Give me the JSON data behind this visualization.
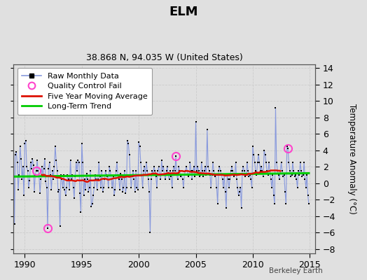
{
  "title": "ELM",
  "subtitle": "38.868 N, 94.035 W (United States)",
  "ylabel": "Temperature Anomaly (°C)",
  "xlim": [
    1989.0,
    2015.5
  ],
  "ylim": [
    -8.5,
    14.5
  ],
  "yticks": [
    -8,
    -6,
    -4,
    -2,
    0,
    2,
    4,
    6,
    8,
    10,
    12,
    14
  ],
  "xticks": [
    1990,
    1995,
    2000,
    2005,
    2010,
    2015
  ],
  "background_color": "#e0e0e0",
  "plot_background": "#e0e0e0",
  "raw_line_color": "#8899dd",
  "raw_marker_color": "#000000",
  "ma_color": "#dd1100",
  "trend_color": "#00cc00",
  "qc_fail_color": "#ff44cc",
  "watermark": "Berkeley Earth",
  "legend_items": [
    "Raw Monthly Data",
    "Quality Control Fail",
    "Five Year Moving Average",
    "Long-Term Trend"
  ]
}
